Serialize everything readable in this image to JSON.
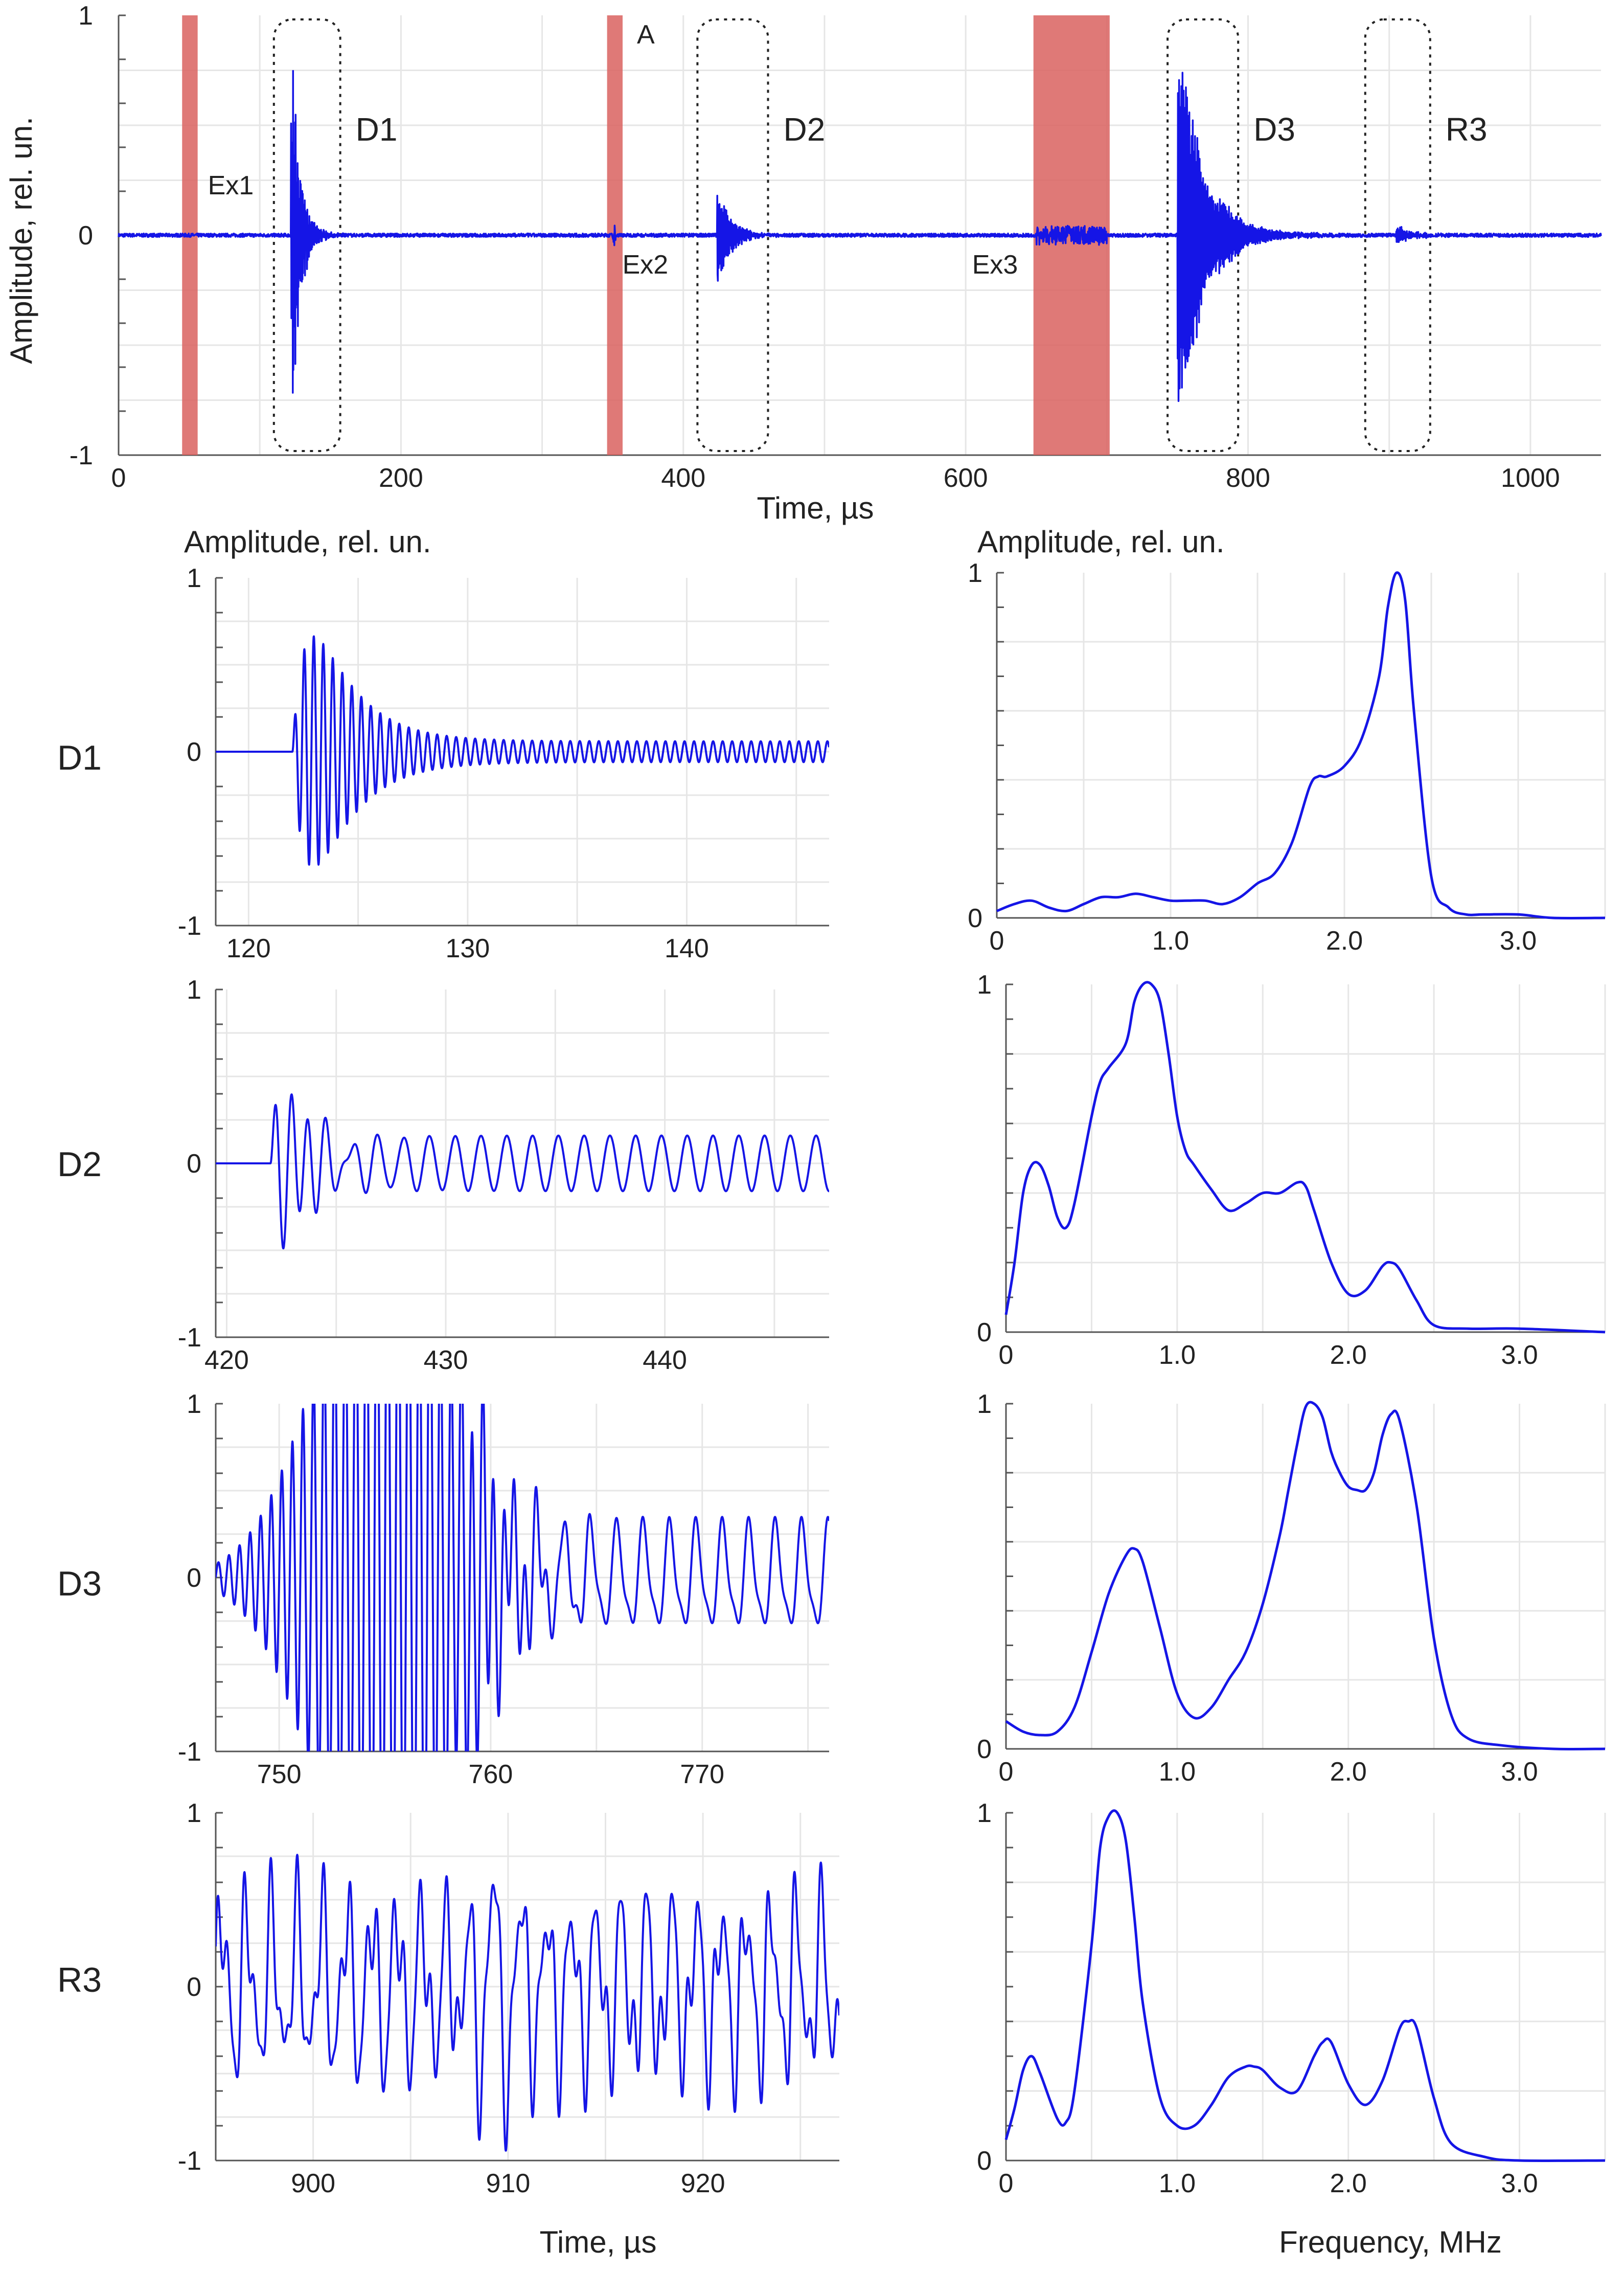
{
  "figure": {
    "top_ylabel": "Amplitude, rel. un.",
    "top_xlabel": "Time, µs",
    "left_col_ylabel": "Amplitude, rel. un.",
    "right_col_ylabel": "Amplitude, rel. un.",
    "bottom_time_label": "Time, µs",
    "bottom_freq_label": "Frequency, MHz",
    "row_labels": [
      "D1",
      "D2",
      "D3",
      "R3"
    ]
  },
  "colors": {
    "signal": "#1515e6",
    "excitation": "#d9625f",
    "grid": "#e6e6e6",
    "axis": "#555555"
  },
  "chart_data": [
    {
      "type": "line",
      "id": "overview",
      "xlim": [
        0,
        1050
      ],
      "ylim": [
        -1,
        1
      ],
      "xticks": [
        0,
        200,
        400,
        600,
        800,
        1000
      ],
      "yticks": [
        -1,
        0,
        1
      ],
      "excitation_bands": [
        {
          "label": "Ex1",
          "x0": 45,
          "x1": 56
        },
        {
          "label": "Ex2",
          "x0": 346,
          "x1": 357
        },
        {
          "label": "Ex3",
          "x0": 648,
          "x1": 702
        }
      ],
      "marker_label": "A",
      "windows": [
        {
          "label": "D1",
          "x0": 110,
          "x1": 157
        },
        {
          "label": "D2",
          "x0": 410,
          "x1": 460
        },
        {
          "label": "D3",
          "x0": 743,
          "x1": 793
        },
        {
          "label": "R3",
          "x0": 883,
          "x1": 929
        }
      ],
      "bursts": [
        {
          "t": 122,
          "amp": 1.0,
          "decay": 6,
          "f": 2.3,
          "type": "impulse"
        },
        {
          "t": 424,
          "amp": 0.3,
          "decay": 8,
          "f": 1.2,
          "type": "impulse"
        },
        {
          "t": 750,
          "amp": 1.0,
          "decay": 18,
          "f": 2.0,
          "type": "impulse"
        },
        {
          "t": 905,
          "amp": 0.05,
          "decay": 10,
          "f": 1.0,
          "type": "impulse"
        },
        {
          "t": 676,
          "amp": 0.04,
          "decay": 0,
          "f": 2.0,
          "type": "block",
          "x0": 650,
          "x1": 700
        },
        {
          "t": 130,
          "amp": 0.03,
          "decay": 0,
          "f": 1,
          "type": "block",
          "x0": 125,
          "x1": 136
        },
        {
          "t": 350,
          "amp": 0.04,
          "decay": 0,
          "f": 1,
          "type": "block",
          "x0": 350,
          "x1": 352
        }
      ]
    },
    {
      "type": "line",
      "id": "D1-time",
      "xlim": [
        118.5,
        146.5
      ],
      "ylim": [
        -1,
        1
      ],
      "xticks": [
        120,
        130,
        140
      ],
      "yticks": [
        -1,
        0,
        1
      ],
      "model": {
        "t0": 122,
        "amp": 1.45,
        "f": 2.3,
        "rise": 1.2,
        "decay": 1.9,
        "tail": 0.06,
        "tailf": 2.3
      }
    },
    {
      "type": "line",
      "id": "D1-spectrum",
      "xlim": [
        0,
        3.5
      ],
      "ylim": [
        0,
        1
      ],
      "xticks": [
        0,
        1.0,
        2.0,
        3.0
      ],
      "xticklabels": [
        "0",
        "1.0",
        "2.0",
        "3.0"
      ],
      "yticks": [
        0,
        1
      ],
      "x": [
        0,
        0.1,
        0.2,
        0.3,
        0.4,
        0.5,
        0.6,
        0.7,
        0.8,
        0.9,
        1.0,
        1.1,
        1.2,
        1.3,
        1.4,
        1.5,
        1.6,
        1.7,
        1.8,
        1.85,
        1.9,
        2.0,
        2.1,
        2.2,
        2.25,
        2.3,
        2.35,
        2.4,
        2.5,
        2.6,
        2.7,
        2.8,
        3.0,
        3.2,
        3.5
      ],
      "y": [
        0.02,
        0.04,
        0.05,
        0.03,
        0.02,
        0.04,
        0.06,
        0.06,
        0.07,
        0.06,
        0.05,
        0.05,
        0.05,
        0.04,
        0.06,
        0.1,
        0.13,
        0.22,
        0.38,
        0.41,
        0.41,
        0.44,
        0.52,
        0.7,
        0.9,
        1.0,
        0.92,
        0.6,
        0.12,
        0.03,
        0.01,
        0.01,
        0.01,
        0.0,
        0.0
      ]
    },
    {
      "type": "line",
      "id": "D2-time",
      "xlim": [
        419.5,
        447.5
      ],
      "ylim": [
        -1,
        1
      ],
      "xticks": [
        420,
        430,
        440
      ],
      "yticks": [
        -1,
        0,
        1
      ],
      "model": {
        "t0": 422,
        "amp": 1.05,
        "f": 1.3,
        "rise": 0.8,
        "decay": 1.3,
        "tail": 0.16,
        "tailf": 0.85
      }
    },
    {
      "type": "line",
      "id": "D2-spectrum",
      "xlim": [
        0,
        3.5
      ],
      "ylim": [
        0,
        1
      ],
      "xticks": [
        0,
        1.0,
        2.0,
        3.0
      ],
      "xticklabels": [
        "0",
        "1.0",
        "2.0",
        "3.0"
      ],
      "yticks": [
        0,
        1
      ],
      "x": [
        0,
        0.05,
        0.1,
        0.15,
        0.2,
        0.25,
        0.3,
        0.35,
        0.4,
        0.5,
        0.55,
        0.6,
        0.7,
        0.75,
        0.8,
        0.85,
        0.9,
        0.95,
        1.0,
        1.05,
        1.1,
        1.2,
        1.3,
        1.4,
        1.5,
        1.6,
        1.7,
        1.75,
        1.8,
        1.9,
        2.0,
        2.1,
        2.2,
        2.25,
        2.3,
        2.4,
        2.5,
        2.7,
        3.0,
        3.5
      ],
      "y": [
        0.05,
        0.2,
        0.4,
        0.48,
        0.48,
        0.42,
        0.33,
        0.3,
        0.37,
        0.62,
        0.72,
        0.76,
        0.83,
        0.95,
        1.0,
        1.0,
        0.95,
        0.8,
        0.62,
        0.52,
        0.48,
        0.41,
        0.35,
        0.37,
        0.4,
        0.4,
        0.43,
        0.42,
        0.35,
        0.2,
        0.11,
        0.12,
        0.19,
        0.2,
        0.18,
        0.09,
        0.02,
        0.01,
        0.01,
        0.0
      ]
    },
    {
      "type": "line",
      "id": "D3-time",
      "xlim": [
        747,
        776
      ],
      "ylim": [
        -1,
        1
      ],
      "xticks": [
        750,
        760,
        770
      ],
      "yticks": [
        -1,
        0,
        1
      ],
      "model": {
        "t0": 747,
        "amp": 2.2,
        "f": 2.0,
        "rise": 4.5,
        "decay": 3.2,
        "tail": 0.28,
        "tailf": 0.8,
        "gauss": 755.2
      }
    },
    {
      "type": "line",
      "id": "D3-spectrum",
      "xlim": [
        0,
        3.5
      ],
      "ylim": [
        0,
        1
      ],
      "xticks": [
        0,
        1.0,
        2.0,
        3.0
      ],
      "xticklabels": [
        "0",
        "1.0",
        "2.0",
        "3.0"
      ],
      "yticks": [
        0,
        1
      ],
      "x": [
        0,
        0.1,
        0.2,
        0.3,
        0.4,
        0.5,
        0.6,
        0.7,
        0.75,
        0.8,
        0.9,
        1.0,
        1.1,
        1.2,
        1.3,
        1.4,
        1.5,
        1.6,
        1.65,
        1.7,
        1.75,
        1.8,
        1.85,
        1.9,
        1.95,
        2.0,
        2.05,
        2.1,
        2.15,
        2.2,
        2.25,
        2.3,
        2.4,
        2.5,
        2.6,
        2.7,
        2.9,
        3.2,
        3.5
      ],
      "y": [
        0.08,
        0.05,
        0.04,
        0.05,
        0.12,
        0.28,
        0.45,
        0.56,
        0.58,
        0.54,
        0.35,
        0.16,
        0.09,
        0.12,
        0.2,
        0.28,
        0.42,
        0.62,
        0.75,
        0.88,
        0.99,
        1.0,
        0.96,
        0.86,
        0.8,
        0.76,
        0.75,
        0.75,
        0.8,
        0.91,
        0.97,
        0.95,
        0.7,
        0.32,
        0.1,
        0.03,
        0.01,
        0.0,
        0.0
      ]
    },
    {
      "type": "line",
      "id": "R3-time",
      "xlim": [
        895,
        927
      ],
      "ylim": [
        -1,
        1
      ],
      "xticks": [
        900,
        910,
        920
      ],
      "yticks": [
        -1,
        0,
        1
      ],
      "model": {
        "t0": 895,
        "amp": 0.5,
        "f": 0.75,
        "rise": 0,
        "decay": 0,
        "tail": 0,
        "tailf": 0.75,
        "mix": true
      }
    },
    {
      "type": "line",
      "id": "R3-spectrum",
      "xlim": [
        0,
        3.5
      ],
      "ylim": [
        0,
        1
      ],
      "xticks": [
        0,
        1.0,
        2.0,
        3.0
      ],
      "xticklabels": [
        "0",
        "1.0",
        "2.0",
        "3.0"
      ],
      "yticks": [
        0,
        1
      ],
      "x": [
        0,
        0.05,
        0.1,
        0.15,
        0.2,
        0.3,
        0.35,
        0.4,
        0.5,
        0.55,
        0.6,
        0.65,
        0.7,
        0.75,
        0.8,
        0.9,
        1.0,
        1.1,
        1.2,
        1.3,
        1.4,
        1.45,
        1.5,
        1.6,
        1.7,
        1.8,
        1.85,
        1.9,
        2.0,
        2.1,
        2.2,
        2.3,
        2.35,
        2.4,
        2.5,
        2.6,
        2.8,
        3.0,
        3.5
      ],
      "y": [
        0.06,
        0.15,
        0.26,
        0.3,
        0.25,
        0.12,
        0.11,
        0.2,
        0.62,
        0.9,
        0.99,
        1.0,
        0.92,
        0.7,
        0.45,
        0.18,
        0.1,
        0.1,
        0.16,
        0.24,
        0.27,
        0.27,
        0.26,
        0.21,
        0.2,
        0.3,
        0.34,
        0.34,
        0.22,
        0.16,
        0.23,
        0.38,
        0.4,
        0.38,
        0.18,
        0.05,
        0.01,
        0.0,
        0.0
      ]
    }
  ]
}
